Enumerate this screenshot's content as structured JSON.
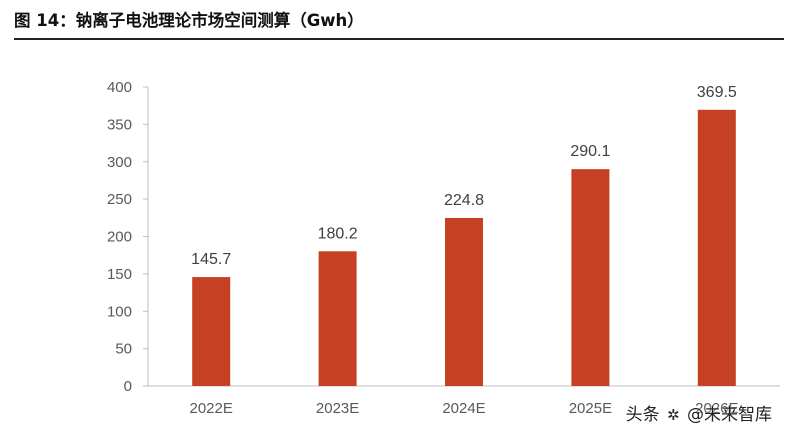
{
  "title": "图 14：钠离子电池理论市场空间测算（Gwh）",
  "watermark": {
    "prefix": "头条",
    "handle": "@未来智库"
  },
  "colors": {
    "bar": "#C64024",
    "axis": "#BFBFBF",
    "text": "#595959"
  },
  "chart_data": {
    "type": "bar",
    "categories": [
      "2022E",
      "2023E",
      "2024E",
      "2025E",
      "2026E"
    ],
    "values": [
      145.7,
      180.2,
      224.8,
      290.1,
      369.5
    ],
    "value_labels": [
      "145.7",
      "180.2",
      "224.8",
      "290.1",
      "369.5"
    ],
    "title": "图 14：钠离子电池理论市场空间测算（Gwh）",
    "xlabel": "",
    "ylabel": "",
    "ylim": [
      0,
      400
    ],
    "yticks": [
      0,
      50,
      100,
      150,
      200,
      250,
      300,
      350,
      400
    ],
    "grid": false,
    "legend": "none"
  }
}
